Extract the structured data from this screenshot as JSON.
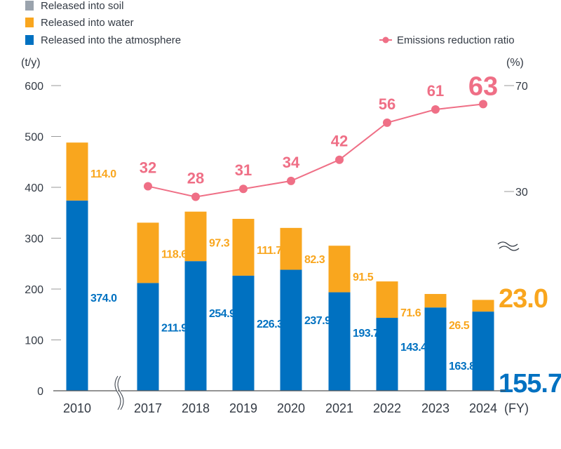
{
  "chart_data": {
    "type": "bar",
    "stacked": true,
    "categories": [
      "2010",
      "2017",
      "2018",
      "2019",
      "2020",
      "2021",
      "2022",
      "2023",
      "2024"
    ],
    "xlabel_unit": "(FY)",
    "ylabel": "(t/y)",
    "ylim": [
      0,
      600
    ],
    "yticks": [
      0,
      100,
      200,
      300,
      400,
      500,
      600
    ],
    "y2label": "(%)",
    "y2ticks": [
      30,
      70
    ],
    "y2_broken": true,
    "x_broken_between": [
      "2010",
      "2017"
    ],
    "legend_placement": "top-left",
    "series": [
      {
        "name": "Released into soil",
        "color": "#9aa3ad",
        "values": [
          0,
          0,
          0,
          0,
          0,
          0,
          0,
          0,
          0
        ]
      },
      {
        "name": "Released into water",
        "color": "#f9a61e",
        "values": [
          114.0,
          118.6,
          97.3,
          111.7,
          82.3,
          91.5,
          71.6,
          26.5,
          23.0
        ]
      },
      {
        "name": "Released into the atmosphere",
        "color": "#0071c1",
        "values": [
          374.0,
          211.9,
          254.9,
          226.3,
          237.9,
          193.7,
          143.4,
          163.8,
          155.7
        ]
      }
    ],
    "line": {
      "name": "Emissions reduction ratio",
      "color": "#ef6f86",
      "axis": "right",
      "categories": [
        "2017",
        "2018",
        "2019",
        "2020",
        "2021",
        "2022",
        "2023",
        "2024"
      ],
      "values": [
        32,
        28,
        31,
        34,
        42,
        56,
        61,
        63
      ]
    }
  }
}
